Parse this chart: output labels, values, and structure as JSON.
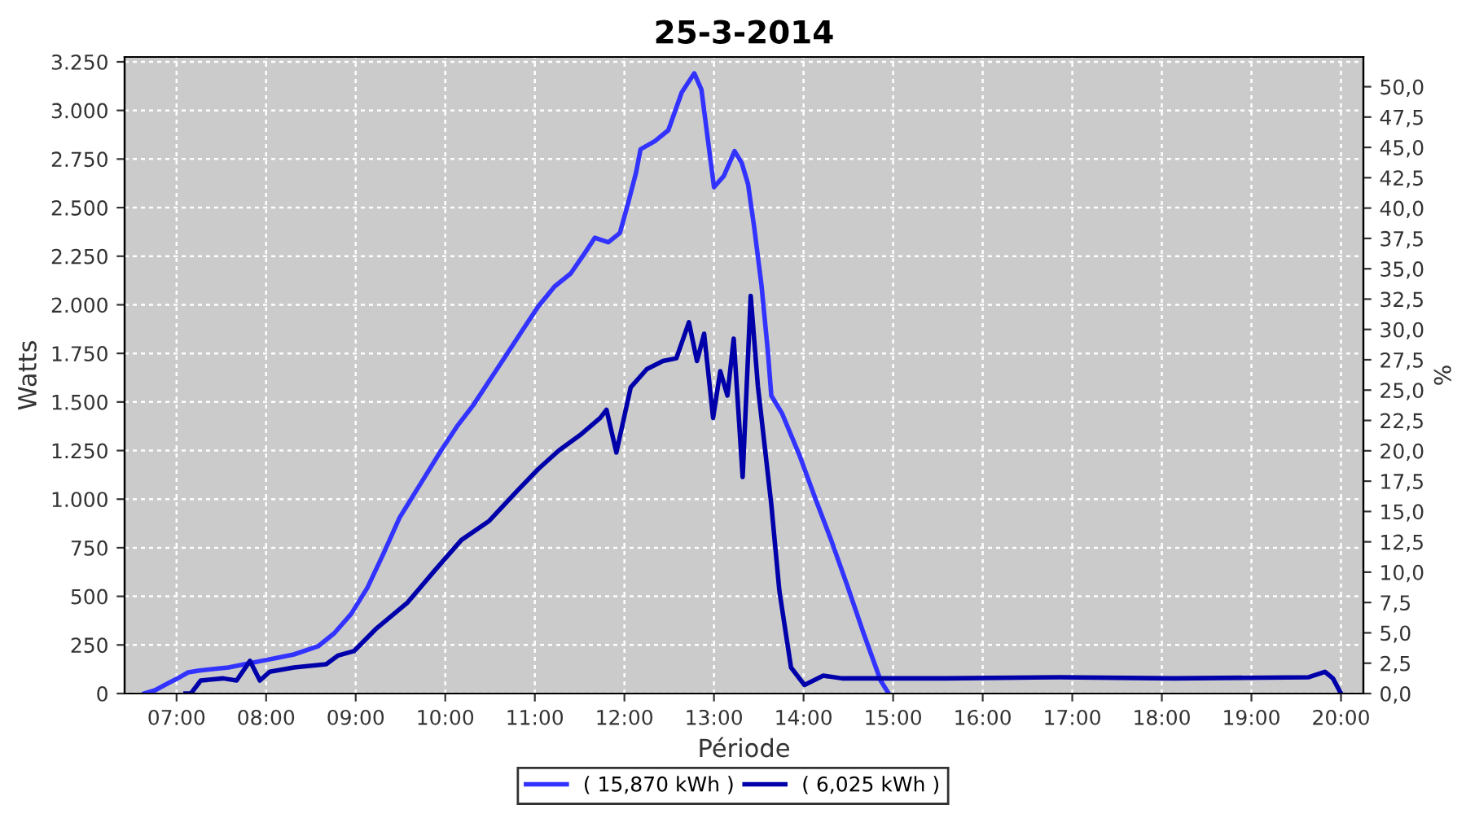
{
  "chart_data": {
    "type": "line",
    "title": "25-3-2014",
    "xlabel": "Période",
    "ylabel": "Watts",
    "y2label": "%",
    "xlim": [
      6.42,
      20.25
    ],
    "xticks": [
      {
        "value": 7,
        "label": "07:00"
      },
      {
        "value": 8,
        "label": "08:00"
      },
      {
        "value": 9,
        "label": "09:00"
      },
      {
        "value": 10,
        "label": "10:00"
      },
      {
        "value": 11,
        "label": "11:00"
      },
      {
        "value": 12,
        "label": "12:00"
      },
      {
        "value": 13,
        "label": "13:00"
      },
      {
        "value": 14,
        "label": "14:00"
      },
      {
        "value": 15,
        "label": "15:00"
      },
      {
        "value": 16,
        "label": "16:00"
      },
      {
        "value": 17,
        "label": "17:00"
      },
      {
        "value": 18,
        "label": "18:00"
      },
      {
        "value": 19,
        "label": "19:00"
      },
      {
        "value": 20,
        "label": "20:00"
      }
    ],
    "ylim": [
      0,
      3275
    ],
    "yticks": [
      0,
      250,
      500,
      750,
      {
        "value": 1000,
        "label": "1.000"
      },
      {
        "value": 1250,
        "label": "1.250"
      },
      {
        "value": 1500,
        "label": "1.500"
      },
      {
        "value": 1750,
        "label": "1.750"
      },
      {
        "value": 2000,
        "label": "2.000"
      },
      {
        "value": 2250,
        "label": "2.250"
      },
      {
        "value": 2500,
        "label": "2.500"
      },
      {
        "value": 2750,
        "label": "2.750"
      },
      {
        "value": 3000,
        "label": "3.000"
      },
      {
        "value": 3250,
        "label": "3.250"
      }
    ],
    "y2lim": [
      0,
      52.45
    ],
    "y2ticks": [
      {
        "value": 0,
        "label": "0,0"
      },
      {
        "value": 2.5,
        "label": "2,5"
      },
      {
        "value": 5,
        "label": "5,0"
      },
      {
        "value": 7.5,
        "label": "7,5"
      },
      {
        "value": 10,
        "label": "10,0"
      },
      {
        "value": 12.5,
        "label": "12,5"
      },
      {
        "value": 15,
        "label": "15,0"
      },
      {
        "value": 17.5,
        "label": "17,5"
      },
      {
        "value": 20,
        "label": "20,0"
      },
      {
        "value": 22.5,
        "label": "22,5"
      },
      {
        "value": 25,
        "label": "25,0"
      },
      {
        "value": 27.5,
        "label": "27,5"
      },
      {
        "value": 30,
        "label": "30,0"
      },
      {
        "value": 32.5,
        "label": "32,5"
      },
      {
        "value": 35,
        "label": "35,0"
      },
      {
        "value": 37.5,
        "label": "37,5"
      },
      {
        "value": 40,
        "label": "40,0"
      },
      {
        "value": 42.5,
        "label": "42,5"
      },
      {
        "value": 45,
        "label": "45,0"
      },
      {
        "value": 47.5,
        "label": "47,5"
      },
      {
        "value": 50,
        "label": "50,0"
      }
    ],
    "grid": true,
    "legend": "bottom",
    "line_style": "solid",
    "marker": "none",
    "series": [
      {
        "name": "( 15,870 kWh )",
        "color": "#3333ff",
        "x": [
          6.64,
          6.76,
          6.86,
          7.0,
          7.13,
          7.24,
          7.4,
          7.58,
          7.76,
          7.95,
          8.13,
          8.31,
          8.58,
          8.76,
          8.95,
          9.13,
          9.31,
          9.49,
          9.76,
          9.95,
          10.13,
          10.31,
          10.49,
          10.67,
          10.86,
          11.04,
          11.22,
          11.4,
          11.55,
          11.67,
          11.82,
          11.95,
          12.04,
          12.13,
          12.18,
          12.34,
          12.49,
          12.64,
          12.78,
          12.86,
          12.93,
          13.0,
          13.11,
          13.23,
          13.31,
          13.38,
          13.45,
          13.53,
          13.6,
          13.64,
          13.76,
          13.95,
          14.13,
          14.31,
          14.49,
          14.67,
          14.86,
          14.95
        ],
        "values": [
          0,
          17,
          42,
          75,
          109,
          117,
          126,
          134,
          151,
          168,
          184,
          201,
          243,
          310,
          410,
          544,
          720,
          905,
          1106,
          1248,
          1374,
          1482,
          1608,
          1734,
          1868,
          1993,
          2094,
          2161,
          2261,
          2345,
          2322,
          2370,
          2521,
          2680,
          2800,
          2842,
          2898,
          3093,
          3191,
          3107,
          2856,
          2605,
          2663,
          2791,
          2730,
          2621,
          2395,
          2102,
          1767,
          1533,
          1441,
          1231,
          1005,
          787,
          553,
          310,
          67,
          0
        ]
      },
      {
        "name": "( 6,025 kWh )",
        "color": "#0000aa",
        "x": [
          7.1,
          7.16,
          7.27,
          7.52,
          7.67,
          7.82,
          7.93,
          8.04,
          8.31,
          8.67,
          8.8,
          8.98,
          9.22,
          9.58,
          9.89,
          10.18,
          10.49,
          10.8,
          11.04,
          11.27,
          11.52,
          11.73,
          11.8,
          11.91,
          12.07,
          12.25,
          12.43,
          12.58,
          12.72,
          12.81,
          12.89,
          12.99,
          13.07,
          13.15,
          13.22,
          13.32,
          13.41,
          13.49,
          13.64,
          13.73,
          13.86,
          14.01,
          14.22,
          14.43,
          15.58,
          16.86,
          18.13,
          19.64,
          19.82,
          19.91,
          20.0
        ],
        "values": [
          0,
          0,
          67,
          78,
          67,
          168,
          67,
          112,
          134,
          151,
          195,
          218,
          330,
          469,
          637,
          790,
          888,
          1041,
          1156,
          1251,
          1335,
          1418,
          1460,
          1240,
          1575,
          1669,
          1711,
          1725,
          1910,
          1711,
          1851,
          1418,
          1658,
          1533,
          1826,
          1114,
          2046,
          1582,
          972,
          528,
          134,
          44,
          92,
          78,
          78,
          84,
          78,
          84,
          112,
          78,
          0
        ]
      }
    ]
  }
}
